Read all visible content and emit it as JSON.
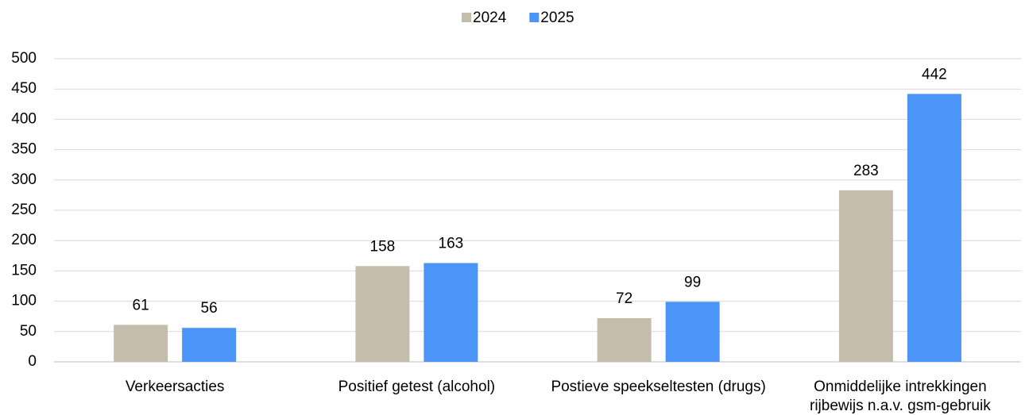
{
  "chart_data": {
    "type": "bar",
    "categories": [
      "Verkeersacties",
      "Positief getest (alcohol)",
      "Postieve speekseltesten (drugs)",
      "Onmiddelijke intrekkingen rijbewijs n.a.v. gsm-gebruik"
    ],
    "series": [
      {
        "name": "2024",
        "color": "#c5bdab",
        "values": [
          61,
          158,
          72,
          283
        ]
      },
      {
        "name": "2025",
        "color": "#4d94f7",
        "values": [
          56,
          163,
          99,
          442
        ]
      }
    ],
    "ylim": [
      0,
      500
    ],
    "yticks": [
      0,
      50,
      100,
      150,
      200,
      250,
      300,
      350,
      400,
      450,
      500
    ],
    "grid": true,
    "legend": "top"
  }
}
